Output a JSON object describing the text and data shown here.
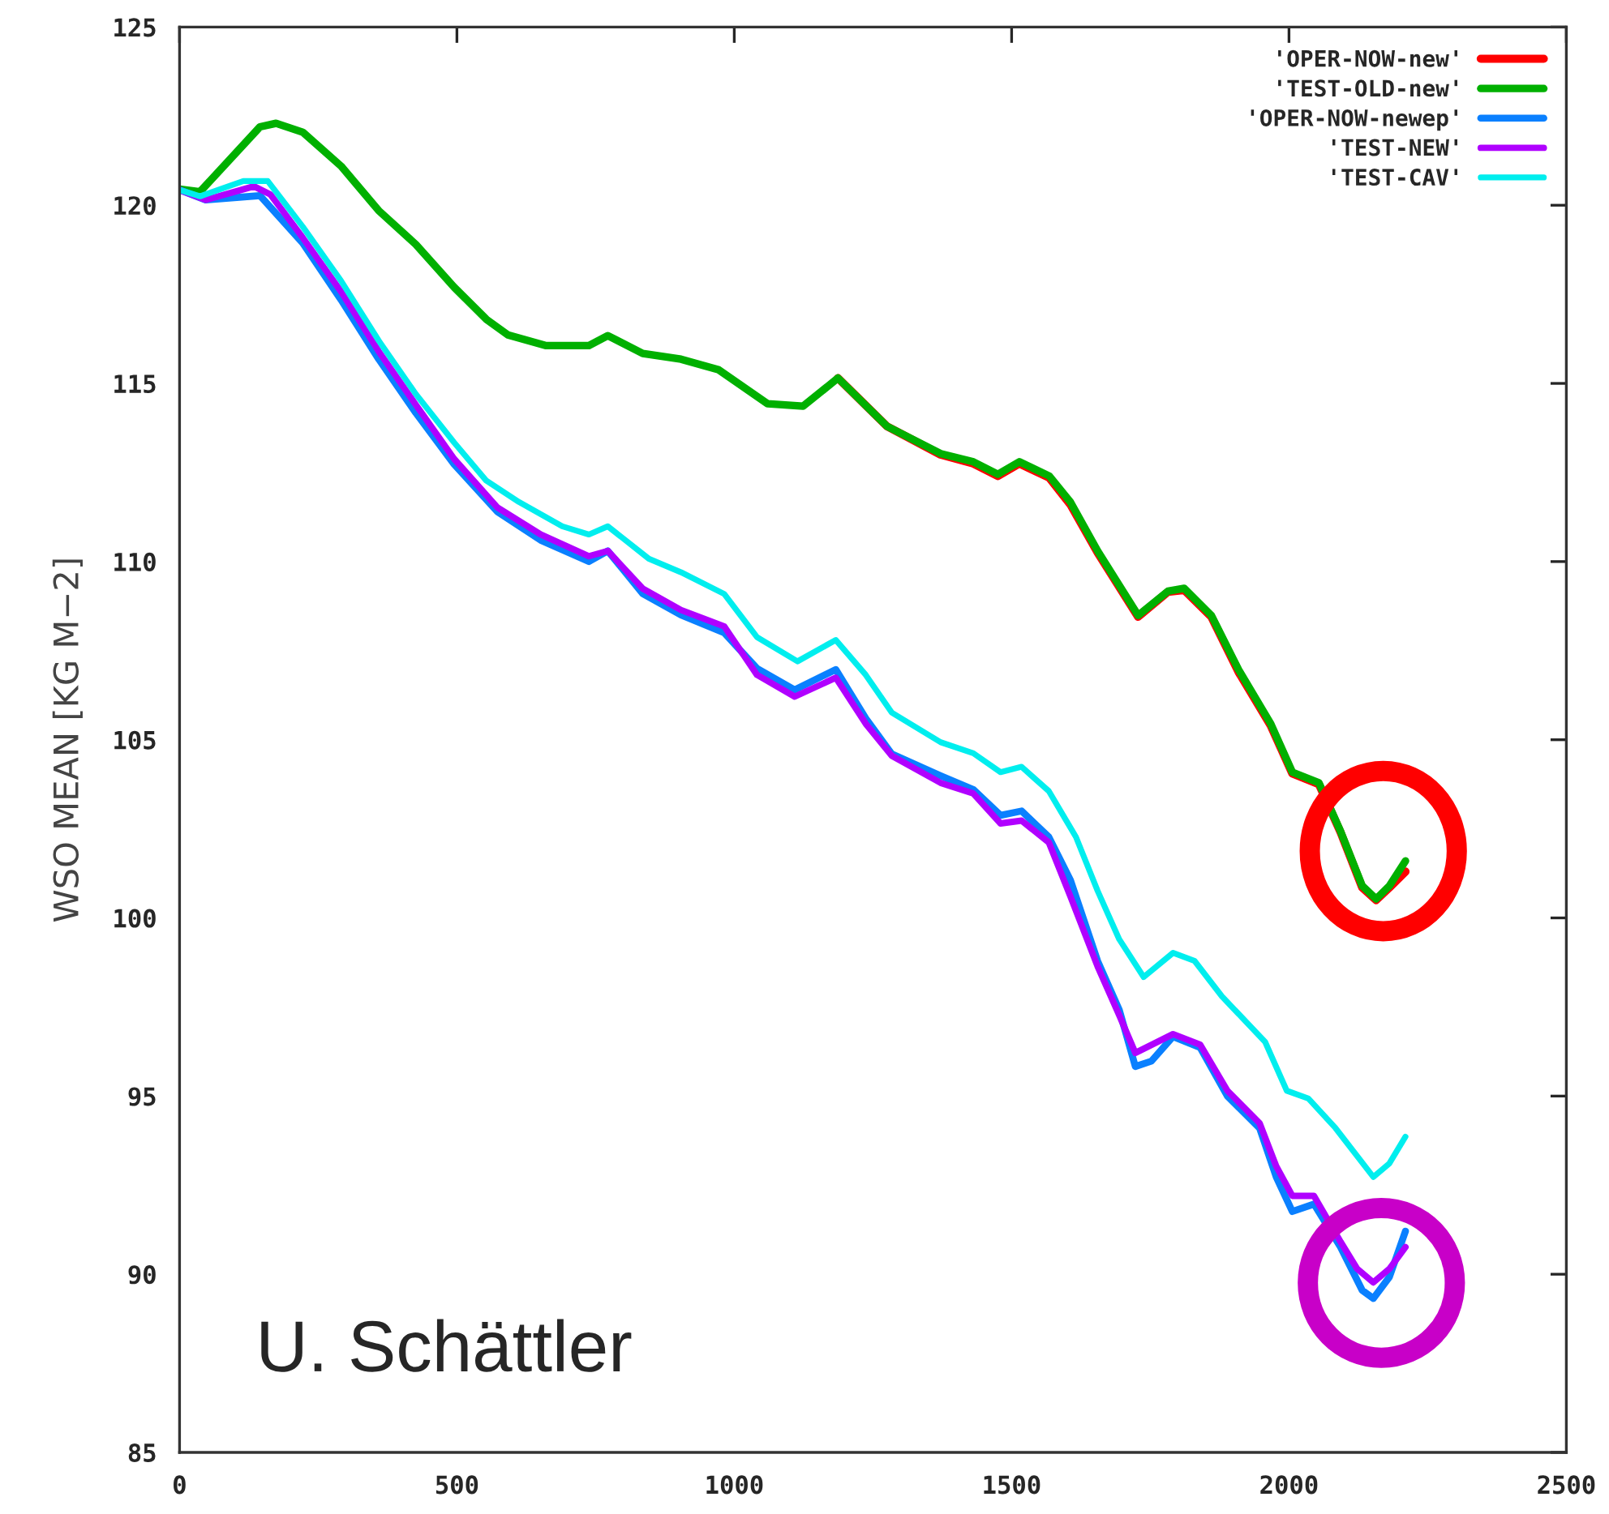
{
  "chart_data": {
    "type": "line",
    "ylabel": "WSO MEAN [KG M−2]",
    "xlim": [
      0,
      2500
    ],
    "xticks": [
      0,
      500,
      1000,
      1500,
      2000,
      2500
    ],
    "ylim": [
      85,
      125
    ],
    "yticks": [
      85,
      90,
      95,
      100,
      105,
      110,
      115,
      120,
      125
    ],
    "grid": false,
    "legend": "top right",
    "line_style": "solid",
    "marker": "none",
    "annotations": [
      "U. Schättler"
    ],
    "series": [
      {
        "name": "'OPER-NOW-new'",
        "color": "#ff0000",
        "x": [
          1187,
          1275,
          1372,
          1431,
          1475,
          1514,
          1568,
          1606,
          1655,
          1728,
          1782,
          1811,
          1860,
          1909,
          1967,
          2006,
          2054,
          2093,
          2132,
          2157,
          2181,
          2210
        ],
        "values": [
          115.15,
          113.8,
          113.0,
          112.75,
          112.4,
          112.75,
          112.35,
          111.6,
          110.25,
          108.45,
          109.15,
          109.2,
          108.45,
          106.9,
          105.4,
          104.05,
          103.75,
          102.4,
          100.85,
          100.5,
          100.85,
          101.3
        ]
      },
      {
        "name": "'TEST-OLD-new'",
        "color": "#00b000",
        "x": [
          0,
          37,
          145,
          174,
          222,
          291,
          359,
          426,
          495,
          553,
          592,
          661,
          738,
          772,
          835,
          904,
          972,
          1060,
          1124,
          1187,
          1275,
          1372,
          1431,
          1475,
          1514,
          1568,
          1606,
          1655,
          1728,
          1782,
          1811,
          1860,
          1909,
          1967,
          2006,
          2054,
          2093,
          2132,
          2157,
          2181,
          2210
        ],
        "values": [
          120.45,
          120.38,
          122.2,
          122.3,
          122.05,
          121.1,
          119.85,
          118.9,
          117.7,
          116.8,
          116.36,
          116.06,
          116.06,
          116.34,
          115.84,
          115.68,
          115.38,
          114.43,
          114.36,
          115.15,
          113.8,
          113.03,
          112.8,
          112.45,
          112.8,
          112.4,
          111.67,
          110.3,
          108.49,
          109.17,
          109.25,
          108.49,
          106.97,
          105.45,
          104.09,
          103.79,
          102.43,
          100.9,
          100.53,
          100.9,
          101.6
        ]
      },
      {
        "name": "'OPER-NOW-newep'",
        "color": "#0a80ff",
        "x": [
          0,
          47,
          145,
          222,
          291,
          359,
          426,
          495,
          573,
          651,
          738,
          772,
          835,
          904,
          982,
          1041,
          1109,
          1183,
          1237,
          1284,
          1372,
          1431,
          1480,
          1518,
          1567,
          1606,
          1655,
          1694,
          1723,
          1752,
          1791,
          1840,
          1889,
          1947,
          1977,
          2006,
          2045,
          2093,
          2132,
          2152,
          2181,
          2210
        ],
        "values": [
          120.43,
          120.15,
          120.27,
          118.94,
          117.35,
          115.68,
          114.17,
          112.73,
          111.4,
          110.6,
          110.0,
          110.3,
          109.1,
          108.5,
          108.0,
          107.0,
          106.4,
          106.97,
          105.6,
          104.6,
          103.99,
          103.6,
          102.88,
          103.0,
          102.27,
          101.06,
          98.79,
          97.42,
          95.83,
          95.98,
          96.67,
          96.36,
          95.0,
          94.1,
          92.73,
          91.76,
          91.97,
          90.76,
          89.55,
          89.32,
          89.92,
          91.21
        ]
      },
      {
        "name": "'TEST-NEW'",
        "color": "#b000ff",
        "x": [
          0,
          47,
          134,
          164,
          222,
          291,
          359,
          426,
          495,
          573,
          651,
          738,
          772,
          835,
          904,
          982,
          1041,
          1109,
          1183,
          1237,
          1284,
          1372,
          1431,
          1480,
          1518,
          1567,
          1606,
          1655,
          1694,
          1723,
          1791,
          1840,
          1889,
          1947,
          1977,
          2006,
          2045,
          2093,
          2123,
          2152,
          2181,
          2210
        ],
        "values": [
          120.43,
          120.15,
          120.53,
          120.3,
          119.09,
          117.58,
          115.9,
          114.4,
          112.88,
          111.52,
          110.76,
          110.15,
          110.3,
          109.24,
          108.64,
          108.18,
          106.82,
          106.21,
          106.74,
          105.45,
          104.55,
          103.79,
          103.49,
          102.65,
          102.73,
          102.12,
          100.6,
          98.64,
          97.27,
          96.21,
          96.74,
          96.44,
          95.15,
          94.24,
          93.03,
          92.2,
          92.2,
          90.91,
          90.15,
          89.77,
          90.15,
          90.76
        ]
      },
      {
        "name": "'TEST-CAV'",
        "color": "#00eeee",
        "x": [
          0,
          37,
          115,
          159,
          222,
          291,
          359,
          426,
          495,
          553,
          612,
          690,
          738,
          772,
          846,
          904,
          982,
          1041,
          1114,
          1183,
          1237,
          1284,
          1372,
          1431,
          1480,
          1518,
          1567,
          1616,
          1655,
          1694,
          1738,
          1791,
          1830,
          1879,
          1957,
          1996,
          2035,
          2084,
          2152,
          2181,
          2210
        ],
        "values": [
          120.43,
          120.25,
          120.68,
          120.68,
          119.4,
          117.88,
          116.2,
          114.7,
          113.34,
          112.27,
          111.67,
          110.99,
          110.76,
          110.99,
          110.08,
          109.7,
          109.09,
          107.88,
          107.2,
          107.8,
          106.82,
          105.76,
          104.93,
          104.62,
          104.09,
          104.24,
          103.56,
          102.27,
          100.76,
          99.4,
          98.34,
          99.02,
          98.79,
          97.8,
          96.52,
          95.15,
          94.93,
          94.1,
          92.73,
          93.11,
          93.86
        ]
      }
    ]
  }
}
